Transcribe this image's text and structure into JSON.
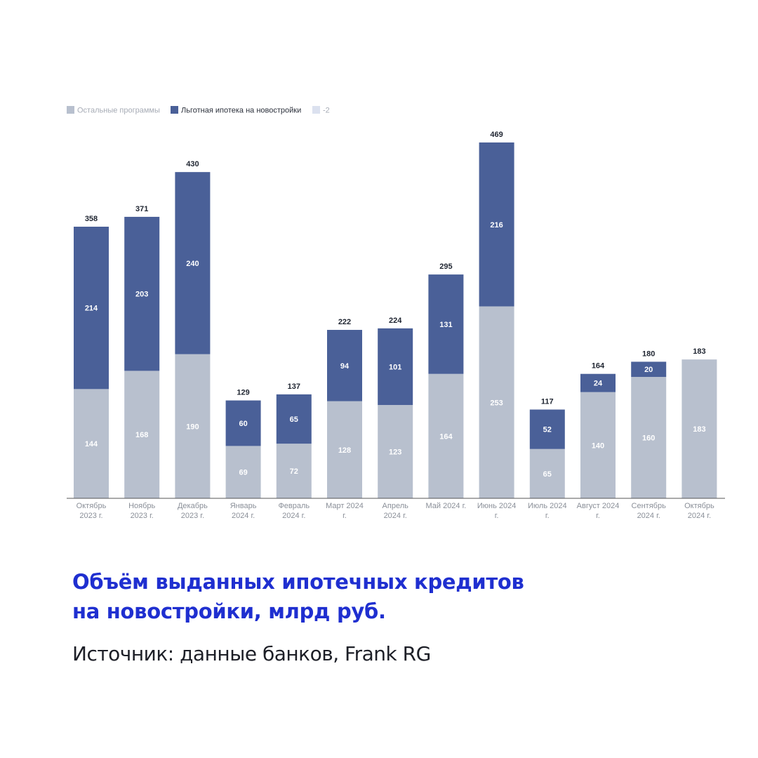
{
  "title_lines": [
    "Объём выданных ипотечных кредитов",
    "на новостройки, млрд руб."
  ],
  "source": "Источник: данные банков, Frank RG",
  "chart_data": {
    "type": "bar",
    "stacked": true,
    "categories": [
      [
        "Октябрь",
        "2023 г."
      ],
      [
        "Ноябрь",
        "2023 г."
      ],
      [
        "Декабрь",
        "2023 г."
      ],
      [
        "Январь",
        "2024 г."
      ],
      [
        "Февраль",
        "2024 г."
      ],
      [
        "Март 2024",
        "г."
      ],
      [
        "Апрель",
        "2024 г."
      ],
      [
        "Май 2024 г."
      ],
      [
        "Июнь 2024",
        "г."
      ],
      [
        "Июль 2024",
        "г."
      ],
      [
        "Август 2024",
        "г."
      ],
      [
        "Сентябрь",
        "2024 г."
      ],
      [
        "Октябрь",
        "2024 г."
      ]
    ],
    "series": [
      {
        "name": "Остальные программы",
        "color": "#b8c0ce",
        "label_color": "#ffffff",
        "values": [
          144,
          168,
          190,
          69,
          72,
          128,
          123,
          164,
          253,
          65,
          140,
          160,
          183
        ]
      },
      {
        "name": "Льготная ипотека на новостройки",
        "color": "#4a6098",
        "label_color": "#ffffff",
        "values": [
          214,
          203,
          240,
          60,
          65,
          94,
          101,
          131,
          216,
          52,
          24,
          20,
          0
        ]
      },
      {
        "name": "-2",
        "color": "#dbe1ef",
        "label_color": "#ffffff",
        "values": [
          0,
          0,
          0,
          0,
          0,
          0,
          0,
          0,
          0,
          0,
          0,
          0,
          0
        ]
      }
    ],
    "totals": [
      358,
      371,
      430,
      129,
      137,
      222,
      224,
      295,
      469,
      117,
      164,
      180,
      183
    ],
    "legend_placement": "top-left",
    "grid": false,
    "ylim": [
      0,
      480
    ]
  }
}
